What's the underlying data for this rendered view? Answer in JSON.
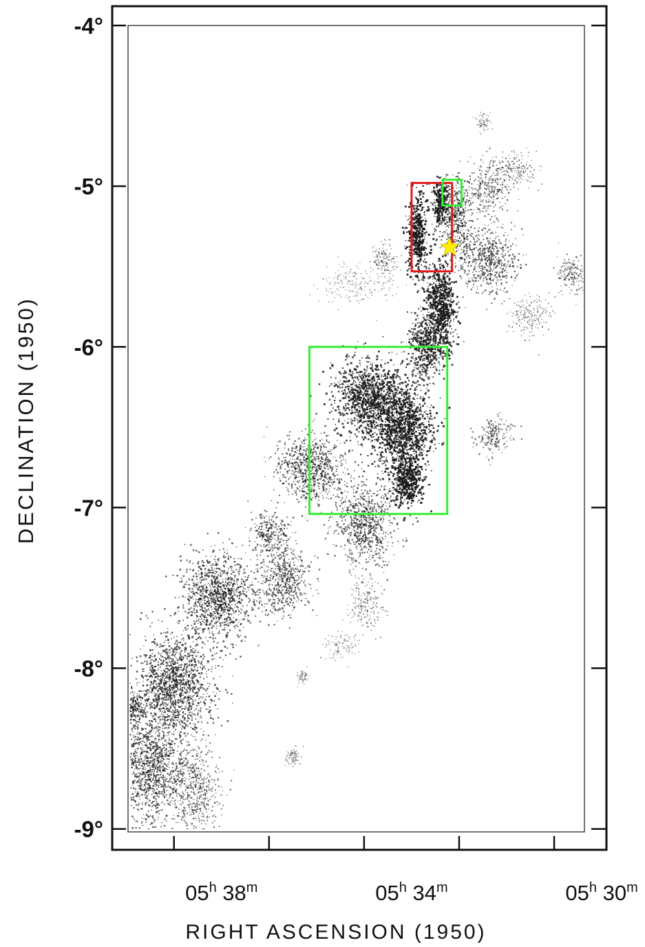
{
  "chart_data": {
    "type": "scatter",
    "title": "",
    "xlabel": "RIGHT ASCENSION (1950)",
    "ylabel": "DECLINATION (1950)",
    "x_axis": {
      "unit": "minutes of RA (1950)",
      "direction": "decreasing to the right",
      "range": [
        40.3,
        29.9
      ],
      "major_ticks": [
        39,
        37,
        35,
        33,
        31,
        29.9
      ],
      "labeled_ticks": [
        {
          "value": 38,
          "hours": "05",
          "h": "h",
          "minutes": "38",
          "m": "m"
        },
        {
          "value": 34,
          "hours": "05",
          "h": "h",
          "minutes": "34",
          "m": "m"
        },
        {
          "value": 30,
          "hours": "05",
          "h": "h",
          "minutes": "30",
          "m": "m"
        }
      ]
    },
    "y_axis": {
      "unit": "degrees (1950)",
      "range": [
        -9.13,
        -3.88
      ],
      "ticks": [
        {
          "value": -4,
          "label": "-4°"
        },
        {
          "value": -5,
          "label": "-5°"
        },
        {
          "value": -6,
          "label": "-6°"
        },
        {
          "value": -7,
          "label": "-7°"
        },
        {
          "value": -8,
          "label": "-8°"
        },
        {
          "value": -9,
          "label": "-9°"
        }
      ],
      "right_ticks": [
        -4,
        -5,
        -6,
        -7,
        -8,
        -9
      ]
    },
    "series": [
      {
        "kind": "emission map (stippled density)",
        "color": "#1a1a1a",
        "regions": [
          {
            "ra": 33.9,
            "dec": -5.3,
            "sx": 0.2,
            "sy": 0.22,
            "w": 1.0
          },
          {
            "ra": 33.4,
            "dec": -5.1,
            "sx": 0.15,
            "sy": 0.14,
            "w": 0.9
          },
          {
            "ra": 33.1,
            "dec": -5.2,
            "sx": 0.3,
            "sy": 0.22,
            "w": 0.6
          },
          {
            "ra": 32.4,
            "dec": -5.0,
            "sx": 0.45,
            "sy": 0.15,
            "w": 0.45
          },
          {
            "ra": 31.8,
            "dec": -4.9,
            "sx": 0.45,
            "sy": 0.1,
            "w": 0.3
          },
          {
            "ra": 32.5,
            "dec": -4.6,
            "sx": 0.15,
            "sy": 0.05,
            "w": 0.2
          },
          {
            "ra": 32.4,
            "dec": -5.45,
            "sx": 0.6,
            "sy": 0.18,
            "w": 0.55
          },
          {
            "ra": 30.6,
            "dec": -5.55,
            "sx": 0.35,
            "sy": 0.1,
            "w": 0.4
          },
          {
            "ra": 31.5,
            "dec": -5.8,
            "sx": 0.4,
            "sy": 0.12,
            "w": 0.3
          },
          {
            "ra": 33.4,
            "dec": -5.75,
            "sx": 0.3,
            "sy": 0.25,
            "w": 0.95
          },
          {
            "ra": 33.7,
            "dec": -6.0,
            "sx": 0.35,
            "sy": 0.18,
            "w": 0.8
          },
          {
            "ra": 35.2,
            "dec": -5.6,
            "sx": 0.7,
            "sy": 0.12,
            "w": 0.2
          },
          {
            "ra": 34.6,
            "dec": -5.45,
            "sx": 0.25,
            "sy": 0.08,
            "w": 0.35
          },
          {
            "ra": 34.9,
            "dec": -6.3,
            "sx": 0.7,
            "sy": 0.2,
            "w": 0.85
          },
          {
            "ra": 34.2,
            "dec": -6.5,
            "sx": 0.6,
            "sy": 0.22,
            "w": 0.9
          },
          {
            "ra": 34.1,
            "dec": -6.82,
            "sx": 0.3,
            "sy": 0.15,
            "w": 1.0
          },
          {
            "ra": 32.3,
            "dec": -6.55,
            "sx": 0.35,
            "sy": 0.1,
            "w": 0.45
          },
          {
            "ra": 36.1,
            "dec": -6.75,
            "sx": 0.65,
            "sy": 0.2,
            "w": 0.6
          },
          {
            "ra": 35.0,
            "dec": -7.1,
            "sx": 0.6,
            "sy": 0.25,
            "w": 0.55
          },
          {
            "ra": 37.0,
            "dec": -7.15,
            "sx": 0.35,
            "sy": 0.12,
            "w": 0.55
          },
          {
            "ra": 36.7,
            "dec": -7.45,
            "sx": 0.5,
            "sy": 0.2,
            "w": 0.55
          },
          {
            "ra": 38.1,
            "dec": -7.55,
            "sx": 0.7,
            "sy": 0.25,
            "w": 0.65
          },
          {
            "ra": 35.0,
            "dec": -7.6,
            "sx": 0.35,
            "sy": 0.15,
            "w": 0.3
          },
          {
            "ra": 35.5,
            "dec": -7.85,
            "sx": 0.35,
            "sy": 0.08,
            "w": 0.2
          },
          {
            "ra": 39.0,
            "dec": -8.1,
            "sx": 0.75,
            "sy": 0.3,
            "w": 0.65
          },
          {
            "ra": 39.5,
            "dec": -8.6,
            "sx": 0.6,
            "sy": 0.35,
            "w": 0.6
          },
          {
            "ra": 38.6,
            "dec": -8.75,
            "sx": 0.5,
            "sy": 0.25,
            "w": 0.45
          },
          {
            "ra": 39.9,
            "dec": -8.25,
            "sx": 0.2,
            "sy": 0.08,
            "w": 0.65
          },
          {
            "ra": 36.5,
            "dec": -8.55,
            "sx": 0.15,
            "sy": 0.06,
            "w": 0.25
          },
          {
            "ra": 36.3,
            "dec": -8.05,
            "sx": 0.1,
            "sy": 0.04,
            "w": 0.15
          }
        ]
      }
    ],
    "overlays": [
      {
        "name": "red-box",
        "shape": "rectangle",
        "color": "#e31a1c",
        "ra_range": [
          34.0,
          33.15
        ],
        "dec_range": [
          -4.98,
          -5.53
        ]
      },
      {
        "name": "green-box-small",
        "shape": "rectangle",
        "color": "#33ee33",
        "ra_range": [
          33.35,
          32.95
        ],
        "dec_range": [
          -4.96,
          -5.12
        ]
      },
      {
        "name": "green-box-large",
        "shape": "rectangle",
        "color": "#33ee33",
        "ra_range": [
          36.15,
          33.25
        ],
        "dec_range": [
          -6.0,
          -7.04
        ]
      },
      {
        "name": "star-marker",
        "shape": "star",
        "color": "#ffee00",
        "ra": 33.2,
        "dec": -5.38
      }
    ],
    "grid": false,
    "legend": "none"
  }
}
